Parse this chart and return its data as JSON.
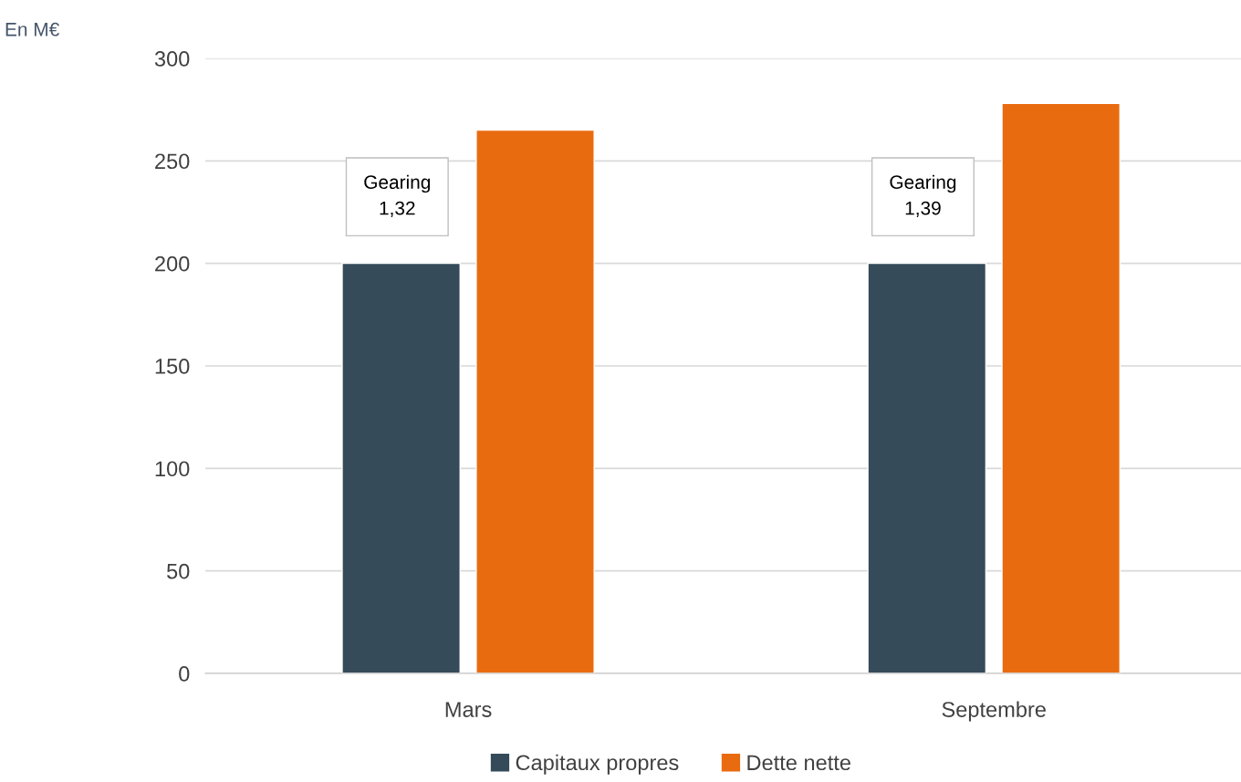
{
  "chart_data": {
    "type": "bar",
    "categories": [
      "Mars",
      "Septembre"
    ],
    "series": [
      {
        "name": "Capitaux propres",
        "color": "#354b5a",
        "values": [
          200,
          200
        ]
      },
      {
        "name": "Dette nette",
        "color": "#e96b10",
        "values": [
          265,
          278
        ]
      }
    ],
    "ylim": [
      0,
      300
    ],
    "yticks": [
      0,
      50,
      100,
      150,
      200,
      250,
      300
    ],
    "grid": "y",
    "legend": "bottom",
    "annotations": [
      "Gearing\n1,32",
      "Gearing\n1,39",
      "En M€"
    ]
  }
}
